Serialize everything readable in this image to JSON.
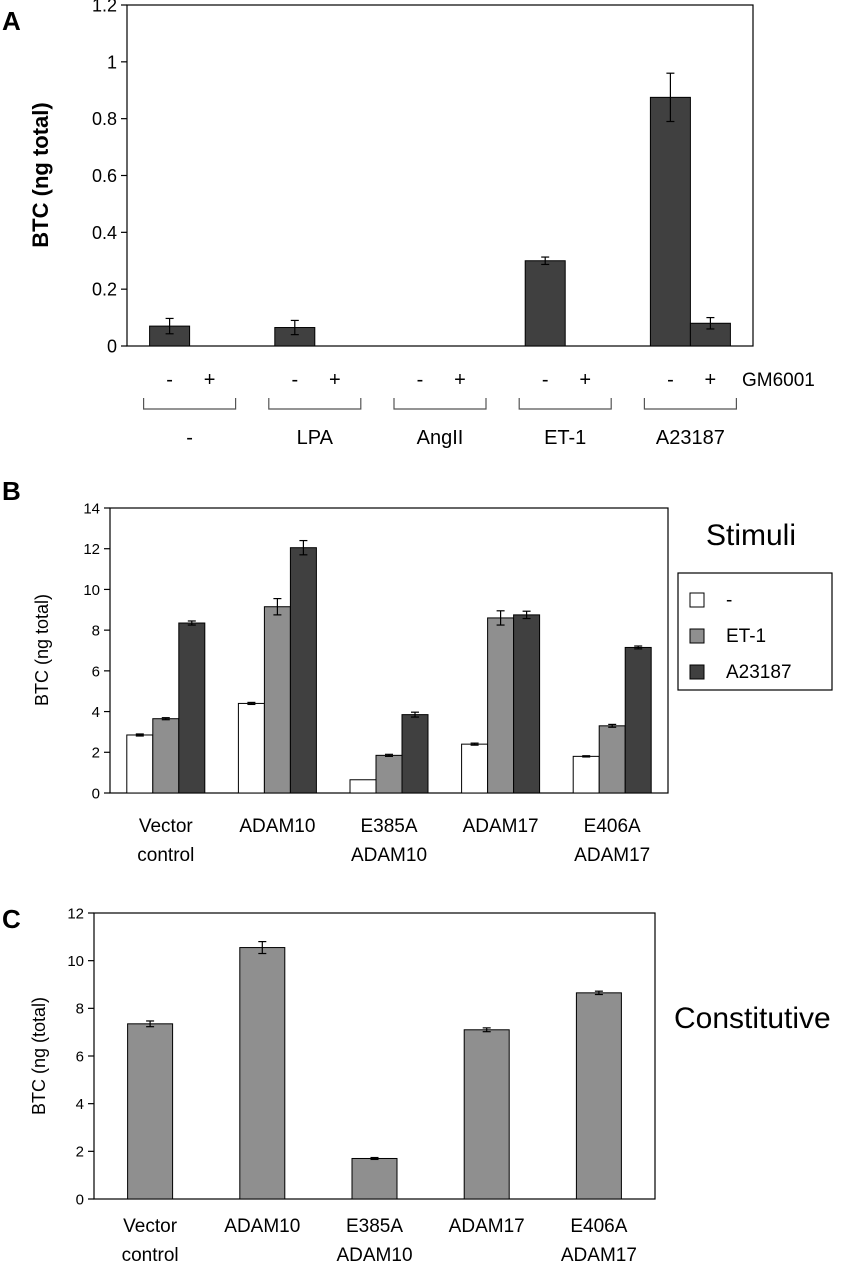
{
  "panels": {
    "a": {
      "label": "A"
    },
    "b": {
      "label": "B",
      "side_title": "Stimuli"
    },
    "c": {
      "label": "C",
      "side_title": "Constitutive"
    }
  },
  "colors": {
    "white": "#ffffff",
    "light": "#8f8f8f",
    "dark": "#404040",
    "axis": "#000000"
  },
  "chart_data": [
    {
      "type": "bar",
      "panel": "A",
      "ylabel": "BTC (ng total)",
      "ylim": [
        0,
        1.2
      ],
      "yticks": [
        "0",
        "0.2",
        "0.4",
        "0.6",
        "0.8",
        "1",
        "1.2"
      ],
      "treatment_label": "GM6001",
      "bar_labels": [
        "-",
        "+",
        "-",
        "+",
        "-",
        "+",
        "-",
        "+",
        "-",
        "+"
      ],
      "groups": [
        "-",
        "LPA",
        "AngII",
        "ET-1",
        "A23187"
      ],
      "values": [
        0.07,
        0,
        0.065,
        0,
        0,
        0,
        0.3,
        0,
        0.875,
        0.08
      ],
      "errors": [
        0.027,
        0,
        0.025,
        0,
        0,
        0,
        0.013,
        0,
        0.085,
        0.02
      ],
      "grid": false
    },
    {
      "type": "bar",
      "panel": "B",
      "ylabel": "BTC (ng total)",
      "ylim": [
        0,
        14
      ],
      "yticks": [
        "0",
        "2",
        "4",
        "6",
        "8",
        "10",
        "12",
        "14"
      ],
      "categories": [
        [
          "Vector",
          "control"
        ],
        [
          "ADAM10"
        ],
        [
          "E385A",
          "ADAM10"
        ],
        [
          "ADAM17"
        ],
        [
          "E406A",
          "ADAM17"
        ]
      ],
      "series": [
        {
          "name": "-",
          "color": "#ffffff",
          "values": [
            2.85,
            4.4,
            0.65,
            2.4,
            1.8
          ],
          "errors": [
            0.05,
            0.05,
            0,
            0.05,
            0.03
          ]
        },
        {
          "name": "ET-1",
          "color": "#8f8f8f",
          "values": [
            3.65,
            9.15,
            1.85,
            8.6,
            3.3
          ],
          "errors": [
            0.05,
            0.4,
            0.05,
            0.35,
            0.07
          ]
        },
        {
          "name": "A23187",
          "color": "#404040",
          "values": [
            8.35,
            12.05,
            3.85,
            8.75,
            7.15
          ],
          "errors": [
            0.1,
            0.35,
            0.12,
            0.18,
            0.07
          ]
        }
      ],
      "legend_position": "right",
      "grid": false
    },
    {
      "type": "bar",
      "panel": "C",
      "ylabel": "BTC (ng (total)",
      "ylim": [
        0,
        12
      ],
      "yticks": [
        "0",
        "2",
        "4",
        "6",
        "8",
        "10",
        "12"
      ],
      "categories": [
        [
          "Vector",
          "control"
        ],
        [
          "ADAM10"
        ],
        [
          "E385A",
          "ADAM10"
        ],
        [
          "ADAM17"
        ],
        [
          "E406A",
          "ADAM17"
        ]
      ],
      "values": [
        7.35,
        10.55,
        1.7,
        7.1,
        8.65
      ],
      "errors": [
        0.12,
        0.25,
        0.04,
        0.08,
        0.07
      ],
      "grid": false
    }
  ]
}
